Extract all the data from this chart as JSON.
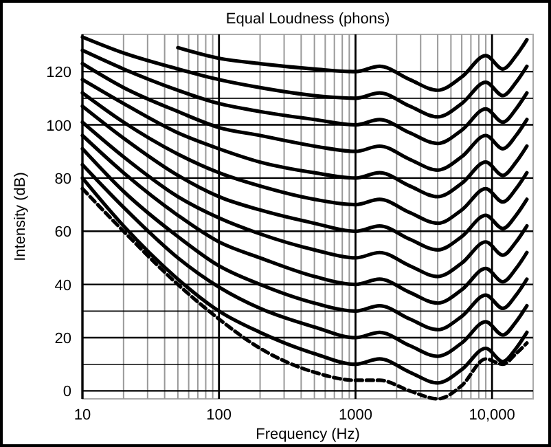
{
  "chart_data": {
    "type": "line",
    "title": "Equal Loudness (phons)",
    "xlabel": "Frequency (Hz)",
    "ylabel": "Intensity (dB)",
    "log": "x",
    "x": [
      10,
      20,
      50,
      100,
      200,
      500,
      1000,
      1500,
      2500,
      4000,
      6000,
      9000,
      12000,
      15000,
      18000
    ],
    "xlim": [
      10,
      20000
    ],
    "xticks": [
      10,
      {
        "value": 20,
        "label": null
      },
      {
        "value": 30,
        "label": null
      },
      {
        "value": 40,
        "label": null
      },
      {
        "value": 50,
        "label": null
      },
      {
        "value": 60,
        "label": null
      },
      {
        "value": 70,
        "label": null
      },
      {
        "value": 80,
        "label": null
      },
      {
        "value": 90,
        "label": null
      },
      100,
      {
        "value": 200,
        "label": null
      },
      {
        "value": 300,
        "label": null
      },
      {
        "value": 400,
        "label": null
      },
      {
        "value": 500,
        "label": null
      },
      {
        "value": 600,
        "label": null
      },
      {
        "value": 700,
        "label": null
      },
      {
        "value": 800,
        "label": null
      },
      {
        "value": 900,
        "label": null
      },
      1000,
      {
        "value": 2000,
        "label": null
      },
      {
        "value": 3000,
        "label": null
      },
      {
        "value": 4000,
        "label": null
      },
      {
        "value": 5000,
        "label": null
      },
      {
        "value": 6000,
        "label": null
      },
      {
        "value": 7000,
        "label": null
      },
      {
        "value": 8000,
        "label": null
      },
      {
        "value": 9000,
        "label": null
      },
      {
        "value": 10000,
        "label": "10,000"
      }
    ],
    "ylim": [
      -3,
      134
    ],
    "yticks": [
      0,
      {
        "value": 10,
        "label": null
      },
      20,
      {
        "value": 30,
        "label": null
      },
      40,
      60,
      80,
      100,
      {
        "value": 110,
        "label": null
      },
      120
    ],
    "grid": true,
    "series": [
      {
        "color": "#000000",
        "line_style": "dashed",
        "values": [
          76,
          60,
          40,
          27,
          16,
          7,
          4,
          4,
          0,
          -3,
          2,
          12,
          10,
          14,
          18
        ]
      },
      {
        "color": "#000000",
        "values": [
          80,
          62,
          42,
          30,
          22,
          14,
          10,
          12,
          7,
          3,
          8,
          16,
          11,
          16,
          22
        ]
      },
      {
        "color": "#000000",
        "values": [
          85,
          69,
          50,
          39,
          31,
          24,
          20,
          22,
          17,
          13,
          18,
          26,
          21,
          26,
          32
        ]
      },
      {
        "color": "#000000",
        "values": [
          91,
          75,
          58,
          47,
          40,
          33,
          30,
          32,
          27,
          23,
          28,
          36,
          31,
          36,
          42
        ]
      },
      {
        "color": "#000000",
        "values": [
          96,
          82,
          66,
          56,
          50,
          43,
          40,
          42,
          37,
          33,
          38,
          46,
          41,
          46,
          52
        ]
      },
      {
        "color": "#000000",
        "values": [
          101,
          88,
          73,
          65,
          59,
          53,
          50,
          52,
          47,
          43,
          48,
          56,
          51,
          56,
          62
        ]
      },
      {
        "color": "#000000",
        "values": [
          107,
          95,
          81,
          73,
          68,
          63,
          60,
          62,
          57,
          53,
          58,
          66,
          61,
          66,
          72
        ]
      },
      {
        "color": "#000000",
        "values": [
          112,
          101,
          89,
          82,
          77,
          72,
          70,
          72,
          67,
          63,
          68,
          76,
          71,
          76,
          82
        ]
      },
      {
        "color": "#000000",
        "values": [
          117,
          108,
          97,
          91,
          86,
          82,
          80,
          82,
          77,
          73,
          78,
          86,
          81,
          86,
          92
        ]
      },
      {
        "color": "#000000",
        "values": [
          123,
          114,
          105,
          99,
          96,
          92,
          90,
          92,
          87,
          83,
          88,
          96,
          91,
          96,
          102
        ]
      },
      {
        "color": "#000000",
        "values": [
          128,
          121,
          113,
          108,
          105,
          102,
          100,
          102,
          97,
          93,
          98,
          106,
          101,
          106,
          112
        ]
      },
      {
        "color": "#000000",
        "values": [
          133,
          127,
          121,
          117,
          114,
          111,
          110,
          112,
          107,
          103,
          108,
          116,
          111,
          116,
          122
        ]
      },
      {
        "color": "#000000",
        "values": [
          null,
          null,
          129,
          125,
          123,
          121,
          120,
          122,
          117,
          113,
          118,
          126,
          121,
          126,
          132
        ]
      }
    ]
  }
}
